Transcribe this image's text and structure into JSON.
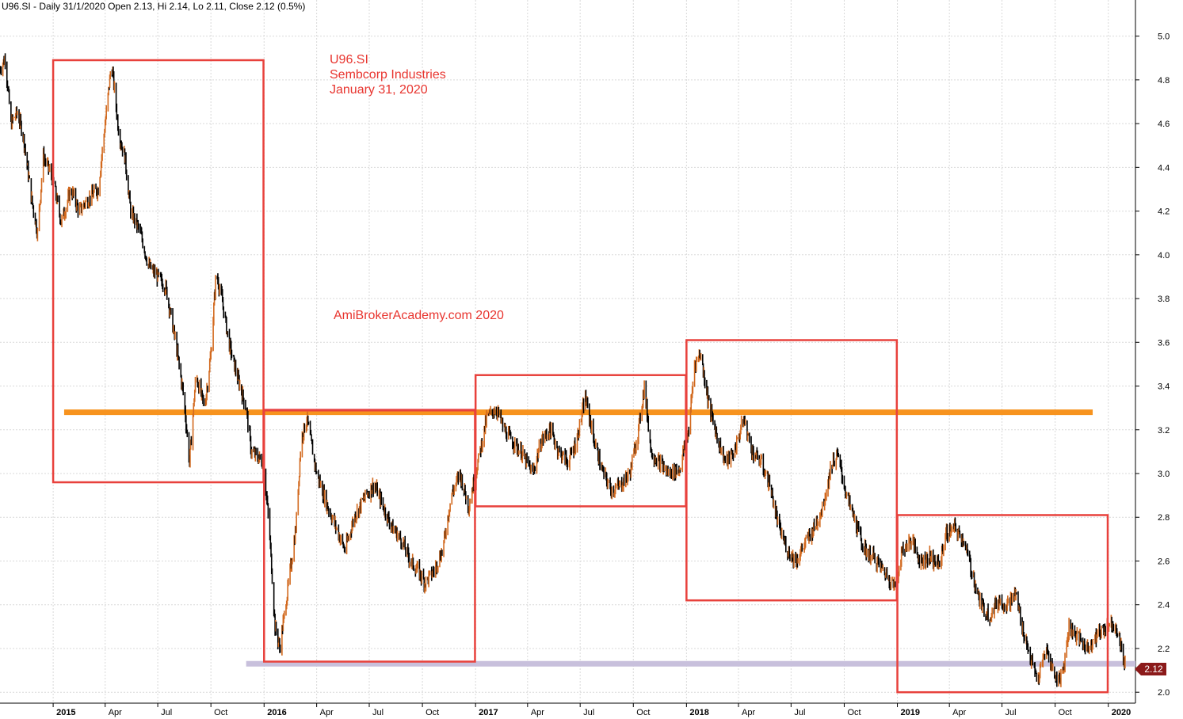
{
  "header": {
    "text": "U96.SI - Daily 31/1/2020 Open 2.13, Hi 2.14, Lo 2.11, Close 2.12 (0.5%)"
  },
  "annotation": {
    "line1": "U96.SI",
    "line2": "Sembcorp Industries",
    "line3": "January 31, 2020",
    "watermark": "AmiBrokerAcademy.com   2020"
  },
  "last_price_label": "2.12",
  "colors": {
    "box": "#e8413c",
    "resistance": "#f7931e",
    "support": "#c8c0dc",
    "price_up": "#d2691e",
    "price_down": "#000000",
    "grid": "#d9d9d9",
    "last_tag": "#8b1a1a"
  },
  "chart_data": {
    "type": "line",
    "title": "",
    "xlabel": "",
    "ylabel": "",
    "yaxis_position": "right",
    "grid": true,
    "ylim": [
      1.95,
      5.1
    ],
    "xlim": [
      "2014-10-01",
      "2020-02-17"
    ],
    "y_ticks": [
      "2.0",
      "2.2",
      "2.4",
      "2.6",
      "2.8",
      "3.0",
      "3.2",
      "3.4",
      "3.6",
      "3.8",
      "4.0",
      "4.2",
      "4.4",
      "4.6",
      "4.8",
      "5.0"
    ],
    "x_ticks": [
      {
        "date": "2015-01-01",
        "label": "2015",
        "year": true
      },
      {
        "date": "2015-04-01",
        "label": "Apr",
        "year": false
      },
      {
        "date": "2015-07-01",
        "label": "Jul",
        "year": false
      },
      {
        "date": "2015-10-01",
        "label": "Oct",
        "year": false
      },
      {
        "date": "2016-01-01",
        "label": "2016",
        "year": true
      },
      {
        "date": "2016-04-01",
        "label": "Apr",
        "year": false
      },
      {
        "date": "2016-07-01",
        "label": "Jul",
        "year": false
      },
      {
        "date": "2016-10-01",
        "label": "Oct",
        "year": false
      },
      {
        "date": "2017-01-01",
        "label": "2017",
        "year": true
      },
      {
        "date": "2017-04-01",
        "label": "Apr",
        "year": false
      },
      {
        "date": "2017-07-01",
        "label": "Jul",
        "year": false
      },
      {
        "date": "2017-10-01",
        "label": "Oct",
        "year": false
      },
      {
        "date": "2018-01-01",
        "label": "2018",
        "year": true
      },
      {
        "date": "2018-04-01",
        "label": "Apr",
        "year": false
      },
      {
        "date": "2018-07-01",
        "label": "Jul",
        "year": false
      },
      {
        "date": "2018-10-01",
        "label": "Oct",
        "year": false
      },
      {
        "date": "2019-01-01",
        "label": "2019",
        "year": true
      },
      {
        "date": "2019-04-01",
        "label": "Apr",
        "year": false
      },
      {
        "date": "2019-07-01",
        "label": "Jul",
        "year": false
      },
      {
        "date": "2019-10-01",
        "label": "Oct",
        "year": false
      },
      {
        "date": "2020-01-01",
        "label": "2020",
        "year": true
      }
    ],
    "series": [
      {
        "points": [
          [
            "2014-10-01",
            4.85
          ],
          [
            "2014-10-10",
            4.9
          ],
          [
            "2014-10-20",
            4.6
          ],
          [
            "2014-10-31",
            4.65
          ],
          [
            "2014-11-10",
            4.55
          ],
          [
            "2014-11-25",
            4.25
          ],
          [
            "2014-12-05",
            4.1
          ],
          [
            "2014-12-15",
            4.45
          ],
          [
            "2014-12-31",
            4.35
          ],
          [
            "2015-01-15",
            4.15
          ],
          [
            "2015-02-01",
            4.3
          ],
          [
            "2015-02-15",
            4.2
          ],
          [
            "2015-03-01",
            4.25
          ],
          [
            "2015-03-20",
            4.3
          ],
          [
            "2015-04-05",
            4.7
          ],
          [
            "2015-04-12",
            4.88
          ],
          [
            "2015-04-25",
            4.55
          ],
          [
            "2015-05-05",
            4.45
          ],
          [
            "2015-05-15",
            4.2
          ],
          [
            "2015-06-01",
            4.1
          ],
          [
            "2015-06-15",
            3.95
          ],
          [
            "2015-07-01",
            3.9
          ],
          [
            "2015-07-15",
            3.85
          ],
          [
            "2015-08-01",
            3.6
          ],
          [
            "2015-08-15",
            3.35
          ],
          [
            "2015-08-25",
            3.05
          ],
          [
            "2015-09-05",
            3.45
          ],
          [
            "2015-09-20",
            3.3
          ],
          [
            "2015-10-01",
            3.55
          ],
          [
            "2015-10-10",
            3.92
          ],
          [
            "2015-10-20",
            3.8
          ],
          [
            "2015-11-01",
            3.6
          ],
          [
            "2015-11-15",
            3.45
          ],
          [
            "2015-12-01",
            3.3
          ],
          [
            "2015-12-10",
            3.1
          ],
          [
            "2015-12-31",
            3.05
          ],
          [
            "2016-01-10",
            2.75
          ],
          [
            "2016-01-20",
            2.3
          ],
          [
            "2016-01-28",
            2.2
          ],
          [
            "2016-02-10",
            2.45
          ],
          [
            "2016-02-25",
            2.75
          ],
          [
            "2016-03-05",
            3.15
          ],
          [
            "2016-03-15",
            3.25
          ],
          [
            "2016-04-01",
            3.0
          ],
          [
            "2016-04-20",
            2.85
          ],
          [
            "2016-05-05",
            2.75
          ],
          [
            "2016-05-20",
            2.65
          ],
          [
            "2016-06-05",
            2.8
          ],
          [
            "2016-06-25",
            2.9
          ],
          [
            "2016-07-10",
            2.95
          ],
          [
            "2016-07-25",
            2.85
          ],
          [
            "2016-08-10",
            2.75
          ],
          [
            "2016-08-25",
            2.7
          ],
          [
            "2016-09-10",
            2.6
          ],
          [
            "2016-09-25",
            2.55
          ],
          [
            "2016-10-05",
            2.5
          ],
          [
            "2016-10-20",
            2.55
          ],
          [
            "2016-11-05",
            2.65
          ],
          [
            "2016-11-20",
            2.9
          ],
          [
            "2016-12-05",
            3.0
          ],
          [
            "2016-12-20",
            2.85
          ],
          [
            "2017-01-05",
            3.05
          ],
          [
            "2017-01-20",
            3.25
          ],
          [
            "2017-02-05",
            3.3
          ],
          [
            "2017-02-20",
            3.2
          ],
          [
            "2017-03-05",
            3.15
          ],
          [
            "2017-03-20",
            3.1
          ],
          [
            "2017-04-10",
            3.0
          ],
          [
            "2017-04-25",
            3.15
          ],
          [
            "2017-05-10",
            3.2
          ],
          [
            "2017-05-25",
            3.1
          ],
          [
            "2017-06-10",
            3.05
          ],
          [
            "2017-06-25",
            3.15
          ],
          [
            "2017-07-10",
            3.35
          ],
          [
            "2017-07-25",
            3.15
          ],
          [
            "2017-08-10",
            3.0
          ],
          [
            "2017-08-25",
            2.92
          ],
          [
            "2017-09-10",
            2.95
          ],
          [
            "2017-09-25",
            3.0
          ],
          [
            "2017-10-10",
            3.2
          ],
          [
            "2017-10-20",
            3.4
          ],
          [
            "2017-11-01",
            3.1
          ],
          [
            "2017-11-15",
            3.05
          ],
          [
            "2017-12-01",
            3.0
          ],
          [
            "2017-12-20",
            3.02
          ],
          [
            "2018-01-05",
            3.2
          ],
          [
            "2018-01-15",
            3.5
          ],
          [
            "2018-01-25",
            3.55
          ],
          [
            "2018-02-10",
            3.3
          ],
          [
            "2018-02-25",
            3.15
          ],
          [
            "2018-03-10",
            3.05
          ],
          [
            "2018-03-25",
            3.1
          ],
          [
            "2018-04-10",
            3.25
          ],
          [
            "2018-04-25",
            3.1
          ],
          [
            "2018-05-10",
            3.05
          ],
          [
            "2018-05-25",
            2.95
          ],
          [
            "2018-06-10",
            2.75
          ],
          [
            "2018-06-25",
            2.65
          ],
          [
            "2018-07-10",
            2.6
          ],
          [
            "2018-07-25",
            2.68
          ],
          [
            "2018-08-10",
            2.75
          ],
          [
            "2018-08-25",
            2.85
          ],
          [
            "2018-09-10",
            3.05
          ],
          [
            "2018-09-20",
            3.08
          ],
          [
            "2018-10-05",
            2.9
          ],
          [
            "2018-10-20",
            2.78
          ],
          [
            "2018-11-05",
            2.65
          ],
          [
            "2018-11-20",
            2.62
          ],
          [
            "2018-12-10",
            2.55
          ],
          [
            "2018-12-28",
            2.48
          ],
          [
            "2019-01-10",
            2.65
          ],
          [
            "2019-01-25",
            2.7
          ],
          [
            "2019-02-10",
            2.6
          ],
          [
            "2019-02-25",
            2.62
          ],
          [
            "2019-03-15",
            2.58
          ],
          [
            "2019-03-25",
            2.72
          ],
          [
            "2019-04-10",
            2.75
          ],
          [
            "2019-04-25",
            2.7
          ],
          [
            "2019-05-10",
            2.55
          ],
          [
            "2019-05-25",
            2.4
          ],
          [
            "2019-06-10",
            2.35
          ],
          [
            "2019-06-25",
            2.42
          ],
          [
            "2019-07-10",
            2.4
          ],
          [
            "2019-07-25",
            2.45
          ],
          [
            "2019-08-05",
            2.3
          ],
          [
            "2019-08-20",
            2.15
          ],
          [
            "2019-09-01",
            2.05
          ],
          [
            "2019-09-15",
            2.2
          ],
          [
            "2019-09-25",
            2.12
          ],
          [
            "2019-10-05",
            2.05
          ],
          [
            "2019-10-15",
            2.1
          ],
          [
            "2019-10-25",
            2.3
          ],
          [
            "2019-11-10",
            2.25
          ],
          [
            "2019-11-25",
            2.2
          ],
          [
            "2019-12-10",
            2.25
          ],
          [
            "2019-12-20",
            2.28
          ],
          [
            "2020-01-05",
            2.32
          ],
          [
            "2020-01-15",
            2.3
          ],
          [
            "2020-01-25",
            2.18
          ],
          [
            "2020-01-31",
            2.12
          ]
        ]
      }
    ],
    "boxes": [
      {
        "x0": "2015-01-01",
        "x1": "2015-12-31",
        "y0": 2.96,
        "y1": 4.89
      },
      {
        "x0": "2016-01-01",
        "x1": "2016-12-31",
        "y0": 2.14,
        "y1": 3.29
      },
      {
        "x0": "2017-01-01",
        "x1": "2017-12-31",
        "y0": 2.85,
        "y1": 3.45
      },
      {
        "x0": "2018-01-01",
        "x1": "2018-12-31",
        "y0": 2.42,
        "y1": 3.61
      },
      {
        "x0": "2019-01-01",
        "x1": "2019-12-31",
        "y0": 2.0,
        "y1": 2.81
      }
    ],
    "h_lines": [
      {
        "y": 3.28,
        "x0": "2015-01-20",
        "x1": "2019-12-05",
        "role": "resistance"
      },
      {
        "y": 3.29,
        "x0": "2016-01-01",
        "x1": "2017-01-01",
        "role": "box-top"
      },
      {
        "y": 2.13,
        "x0": "2015-12-01",
        "x1": "2020-02-17",
        "role": "support"
      }
    ]
  }
}
